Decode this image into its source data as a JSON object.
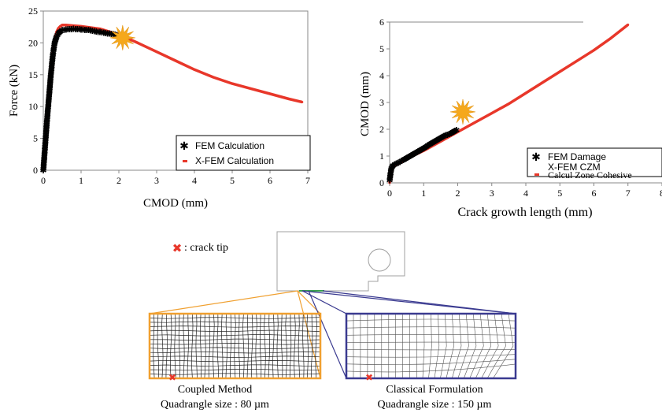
{
  "chart_data": [
    {
      "type": "line",
      "xlabel": "CMOD (mm)",
      "ylabel": "Force (kN)",
      "xlim": [
        0,
        7
      ],
      "ylim": [
        0,
        25
      ],
      "xticks": [
        0,
        1,
        2,
        3,
        4,
        5,
        6,
        7
      ],
      "yticks": [
        0,
        5,
        10,
        15,
        20,
        25
      ],
      "legend_position": "bottom-right",
      "series": [
        {
          "name": "FEM  Calculation",
          "marker": "asterisk",
          "color": "#000000",
          "x": [
            0.0,
            0.05,
            0.1,
            0.15,
            0.2,
            0.25,
            0.3,
            0.35,
            0.4,
            0.45,
            0.5,
            0.6,
            0.8,
            1.0,
            1.2,
            1.4,
            1.6,
            1.8,
            2.0,
            2.2
          ],
          "y": [
            0.0,
            4.0,
            8.0,
            11.5,
            15.0,
            18.0,
            20.0,
            21.0,
            21.5,
            21.8,
            22.0,
            22.1,
            22.2,
            22.1,
            22.0,
            21.8,
            21.6,
            21.4,
            21.2,
            20.9
          ]
        },
        {
          "name": "X-FEM Calculation",
          "marker": "dash",
          "color": "#e8372a",
          "x": [
            0.0,
            0.05,
            0.1,
            0.15,
            0.2,
            0.25,
            0.3,
            0.35,
            0.4,
            0.45,
            0.5,
            0.6,
            0.8,
            1.0,
            1.5,
            2.0,
            2.5,
            3.0,
            3.5,
            4.0,
            4.5,
            5.0,
            5.5,
            6.0,
            6.5,
            6.85
          ],
          "y": [
            0.0,
            4.0,
            8.0,
            12.0,
            15.5,
            18.5,
            20.5,
            21.7,
            22.3,
            22.6,
            22.8,
            22.8,
            22.7,
            22.6,
            22.2,
            21.3,
            20.0,
            18.6,
            17.2,
            15.8,
            14.6,
            13.6,
            12.8,
            12.0,
            11.2,
            10.7
          ]
        }
      ],
      "annotations": [
        {
          "type": "star",
          "x": 2.1,
          "y": 20.8,
          "color": "#f5a81c"
        }
      ]
    },
    {
      "type": "line",
      "xlabel": "Crack growth length (mm)",
      "ylabel": "CMOD (mm)",
      "xlim": [
        0,
        8
      ],
      "ylim": [
        0,
        6
      ],
      "xticks": [
        0,
        1,
        2,
        3,
        4,
        5,
        6,
        7,
        8
      ],
      "yticks": [
        0,
        1,
        2,
        3,
        4,
        5,
        6
      ],
      "x_tick_labels_shown": [
        "0",
        "1",
        "2",
        "3",
        "4",
        "5",
        "6",
        "7",
        "8"
      ],
      "legend_position": "bottom-right",
      "series": [
        {
          "name": "FEM Damage",
          "marker": "asterisk",
          "color": "#000000",
          "x": [
            0.0,
            0.05,
            0.1,
            0.2,
            0.4,
            0.6,
            0.8,
            1.0,
            1.2,
            1.4,
            1.6,
            1.8,
            2.0
          ],
          "y": [
            0.1,
            0.55,
            0.65,
            0.72,
            0.85,
            1.0,
            1.15,
            1.3,
            1.45,
            1.6,
            1.75,
            1.85,
            2.0
          ]
        },
        {
          "name": "X-FEM CZM",
          "marker": "dash",
          "color": "#e8372a",
          "x": [
            0.0,
            0.05,
            0.1,
            0.5,
            1.0,
            1.5,
            2.0,
            2.5,
            3.0,
            3.5,
            4.0,
            4.5,
            5.0,
            5.5,
            6.0,
            6.5,
            7.0
          ],
          "y": [
            0.0,
            0.5,
            0.6,
            0.9,
            1.2,
            1.55,
            1.9,
            2.25,
            2.6,
            2.95,
            3.35,
            3.75,
            4.15,
            4.55,
            4.95,
            5.4,
            5.9
          ]
        }
      ],
      "overlapped_text": "Calcul Zone Cohesive",
      "annotations": [
        {
          "type": "star",
          "x": 2.15,
          "y": 2.65,
          "color": "#f5a81c"
        }
      ]
    }
  ],
  "diagram": {
    "legend_label": ": crack tip",
    "left_caption_line1": "Coupled Method",
    "left_caption_line2": "Quadrangle size : 80 µm",
    "right_caption_line1": "Classical Formulation",
    "right_caption_line2": "Quadrangle size : 150 µm",
    "left_frame_color": "#f0a030",
    "right_frame_color": "#3a3a90",
    "crack_tip_color": "#e8372a"
  }
}
